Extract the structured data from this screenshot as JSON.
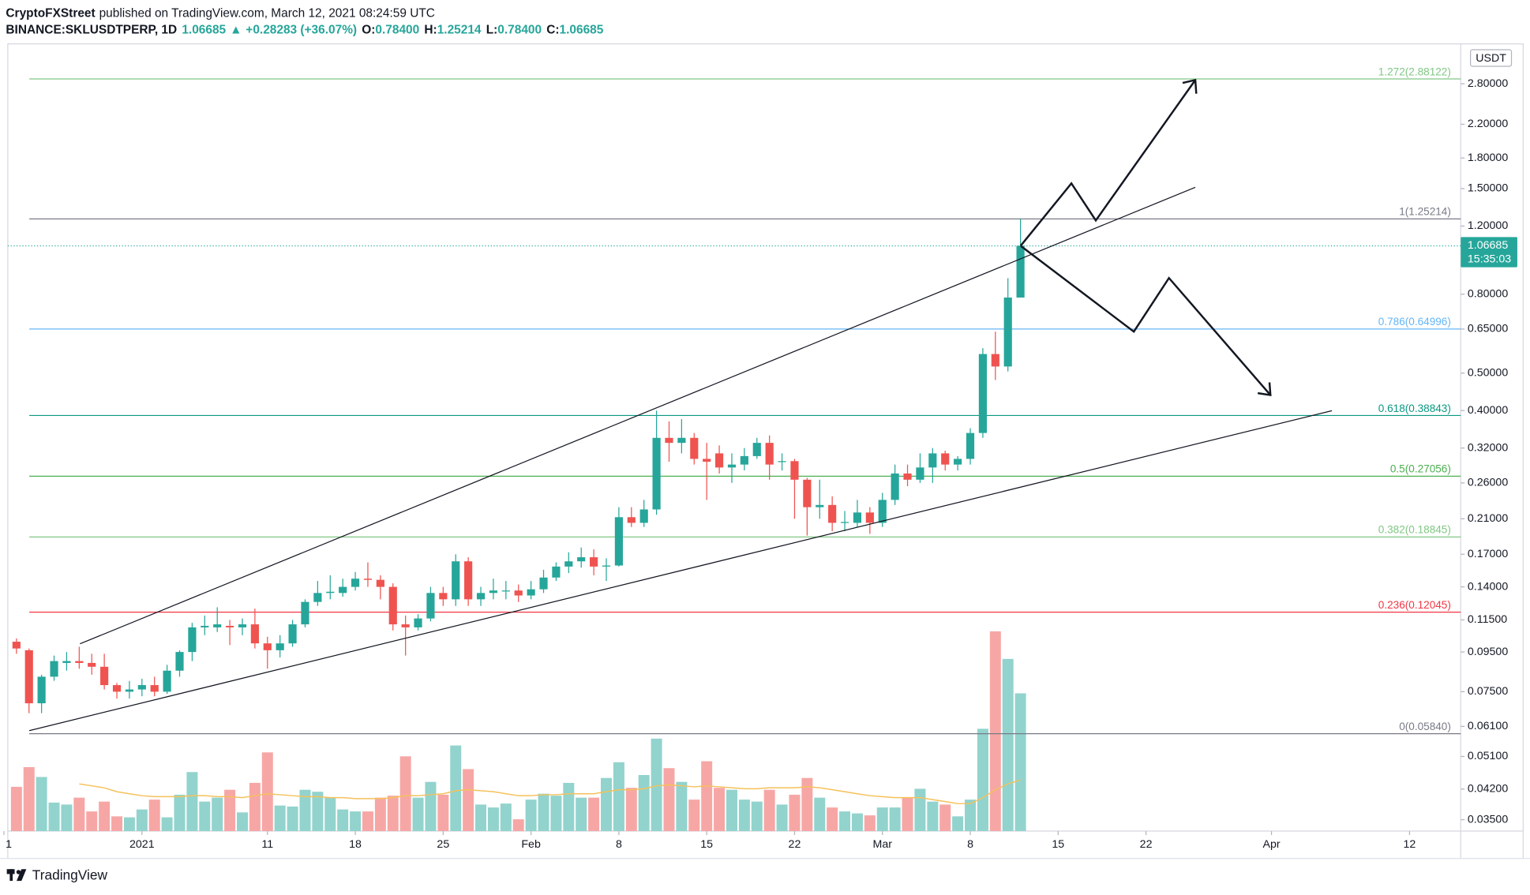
{
  "header": {
    "author": "CryptoFXStreet",
    "published": "published on TradingView.com, March 12, 2021 08:24:59 UTC",
    "symbol": "BINANCE:SKLUSDTPERP, 1D",
    "price": "1.06685",
    "arrow": "▲",
    "change": "+0.28283 (+36.07%)",
    "ohlc": [
      [
        "O:",
        "0.78400"
      ],
      [
        "H:",
        "1.25214"
      ],
      [
        "L:",
        "0.78400"
      ],
      [
        "C:",
        "1.06685"
      ]
    ]
  },
  "footer": {
    "brand": "TradingView"
  },
  "chart_data": {
    "type": "candlestick",
    "log_scale": true,
    "currency": "USDT",
    "up_color": "#26a69a",
    "down_color": "#ef5350",
    "volume_up_color": "#92d3cd",
    "volume_down_color": "#f6a7a5",
    "volume_ma_color": "#f5c15b",
    "last_price": 1.06685,
    "countdown": "15:35:03",
    "xlim": [
      "2020-12-21",
      "2021-04-16"
    ],
    "xticks": [
      {
        "value": "2020-12-21",
        "label": "1"
      },
      {
        "value": "2021-01-01",
        "label": "2021"
      },
      {
        "value": "2021-01-11",
        "label": "11"
      },
      {
        "value": "2021-01-18",
        "label": "18"
      },
      {
        "value": "2021-01-25",
        "label": "25"
      },
      {
        "value": "2021-02-01",
        "label": "Feb"
      },
      {
        "value": "2021-02-08",
        "label": "8"
      },
      {
        "value": "2021-02-15",
        "label": "15"
      },
      {
        "value": "2021-02-22",
        "label": "22"
      },
      {
        "value": "2021-03-01",
        "label": "Mar"
      },
      {
        "value": "2021-03-08",
        "label": "8"
      },
      {
        "value": "2021-03-15",
        "label": "15"
      },
      {
        "value": "2021-03-22",
        "label": "22"
      },
      {
        "value": "2021-04-01",
        "label": "Apr"
      },
      {
        "value": "2021-04-12",
        "label": "12"
      }
    ],
    "ylim": [
      0.0327,
      3.55
    ],
    "yticks": [
      {
        "value": 2.8,
        "label": "2.80000"
      },
      {
        "value": 2.2,
        "label": "2.20000"
      },
      {
        "value": 1.8,
        "label": "1.80000"
      },
      {
        "value": 1.5,
        "label": "1.50000"
      },
      {
        "value": 1.2,
        "label": "1.20000"
      },
      {
        "value": 0.8,
        "label": "0.80000"
      },
      {
        "value": 0.65,
        "label": "0.65000"
      },
      {
        "value": 0.5,
        "label": "0.50000"
      },
      {
        "value": 0.4,
        "label": "0.40000"
      },
      {
        "value": 0.32,
        "label": "0.32000"
      },
      {
        "value": 0.26,
        "label": "0.26000"
      },
      {
        "value": 0.21,
        "label": "0.21000"
      },
      {
        "value": 0.17,
        "label": "0.17000"
      },
      {
        "value": 0.14,
        "label": "0.14000"
      },
      {
        "value": 0.115,
        "label": "0.11500"
      },
      {
        "value": 0.095,
        "label": "0.09500"
      },
      {
        "value": 0.075,
        "label": "0.07500"
      },
      {
        "value": 0.061,
        "label": "0.06100"
      },
      {
        "value": 0.051,
        "label": "0.05100"
      },
      {
        "value": 0.042,
        "label": "0.04200"
      },
      {
        "value": 0.035,
        "label": "0.03500"
      }
    ],
    "fib_levels": [
      {
        "ratio": 1.272,
        "price": 2.88122,
        "label": "(2.88122)",
        "color": "#81c784"
      },
      {
        "ratio": 1,
        "price": 1.25214,
        "label": "(1.25214)",
        "color": "#787b86"
      },
      {
        "ratio": 0.786,
        "price": 0.64996,
        "label": "(0.64996)",
        "color": "#64b5f6"
      },
      {
        "ratio": 0.618,
        "price": 0.38843,
        "label": "(0.38843)",
        "color": "#089981"
      },
      {
        "ratio": 0.5,
        "price": 0.27056,
        "label": "(0.27056)",
        "color": "#4caf50"
      },
      {
        "ratio": 0.382,
        "price": 0.18845,
        "label": "(0.18845)",
        "color": "#81c784"
      },
      {
        "ratio": 0.236,
        "price": 0.12045,
        "label": "(0.12045)",
        "color": "#f23645"
      },
      {
        "ratio": 0,
        "price": 0.0584,
        "label": "(0.05840)",
        "color": "#787b86"
      }
    ],
    "x": [
      "2020-12-22",
      "2020-12-23",
      "2020-12-24",
      "2020-12-25",
      "2020-12-26",
      "2020-12-27",
      "2020-12-28",
      "2020-12-29",
      "2020-12-30",
      "2020-12-31",
      "2021-01-01",
      "2021-01-02",
      "2021-01-03",
      "2021-01-04",
      "2021-01-05",
      "2021-01-06",
      "2021-01-07",
      "2021-01-08",
      "2021-01-09",
      "2021-01-10",
      "2021-01-11",
      "2021-01-12",
      "2021-01-13",
      "2021-01-14",
      "2021-01-15",
      "2021-01-16",
      "2021-01-17",
      "2021-01-18",
      "2021-01-19",
      "2021-01-20",
      "2021-01-21",
      "2021-01-22",
      "2021-01-23",
      "2021-01-24",
      "2021-01-25",
      "2021-01-26",
      "2021-01-27",
      "2021-01-28",
      "2021-01-29",
      "2021-01-30",
      "2021-01-31",
      "2021-02-01",
      "2021-02-02",
      "2021-02-03",
      "2021-02-04",
      "2021-02-05",
      "2021-02-06",
      "2021-02-07",
      "2021-02-08",
      "2021-02-09",
      "2021-02-10",
      "2021-02-11",
      "2021-02-12",
      "2021-02-13",
      "2021-02-14",
      "2021-02-15",
      "2021-02-16",
      "2021-02-17",
      "2021-02-18",
      "2021-02-19",
      "2021-02-20",
      "2021-02-21",
      "2021-02-22",
      "2021-02-23",
      "2021-02-24",
      "2021-02-25",
      "2021-02-26",
      "2021-02-27",
      "2021-02-28",
      "2021-03-01",
      "2021-03-02",
      "2021-03-03",
      "2021-03-04",
      "2021-03-05",
      "2021-03-06",
      "2021-03-07",
      "2021-03-08",
      "2021-03-09",
      "2021-03-10",
      "2021-03-11",
      "2021-03-12"
    ],
    "open": [
      0.101,
      0.096,
      0.07,
      0.082,
      0.089,
      0.09,
      0.089,
      0.087,
      0.078,
      0.075,
      0.076,
      0.078,
      0.075,
      0.085,
      0.095,
      0.11,
      0.11,
      0.111,
      0.11,
      0.112,
      0.1,
      0.096,
      0.1,
      0.112,
      0.128,
      0.135,
      0.135,
      0.14,
      0.147,
      0.146,
      0.14,
      0.112,
      0.11,
      0.116,
      0.135,
      0.13,
      0.163,
      0.13,
      0.135,
      0.137,
      0.137,
      0.133,
      0.138,
      0.148,
      0.158,
      0.163,
      0.167,
      0.158,
      0.159,
      0.212,
      0.205,
      0.222,
      0.34,
      0.33,
      0.34,
      0.3,
      0.31,
      0.285,
      0.29,
      0.305,
      0.33,
      0.295,
      0.296,
      0.265,
      0.225,
      0.228,
      0.205,
      0.205,
      0.218,
      0.205,
      0.235,
      0.275,
      0.265,
      0.285,
      0.31,
      0.29,
      0.3,
      0.35,
      0.56,
      0.52,
      0.784
    ],
    "high": [
      0.103,
      0.097,
      0.083,
      0.093,
      0.095,
      0.098,
      0.094,
      0.094,
      0.079,
      0.08,
      0.081,
      0.082,
      0.088,
      0.096,
      0.113,
      0.118,
      0.124,
      0.115,
      0.116,
      0.123,
      0.104,
      0.105,
      0.115,
      0.13,
      0.145,
      0.15,
      0.147,
      0.153,
      0.162,
      0.15,
      0.143,
      0.118,
      0.119,
      0.14,
      0.14,
      0.17,
      0.167,
      0.14,
      0.147,
      0.145,
      0.142,
      0.145,
      0.155,
      0.162,
      0.172,
      0.177,
      0.175,
      0.166,
      0.225,
      0.225,
      0.235,
      0.4,
      0.375,
      0.38,
      0.35,
      0.33,
      0.325,
      0.31,
      0.32,
      0.34,
      0.345,
      0.31,
      0.3,
      0.268,
      0.265,
      0.24,
      0.22,
      0.235,
      0.225,
      0.245,
      0.29,
      0.29,
      0.31,
      0.32,
      0.315,
      0.305,
      0.36,
      0.58,
      0.64,
      0.88,
      1.25214
    ],
    "low": [
      0.094,
      0.066,
      0.066,
      0.08,
      0.085,
      0.086,
      0.083,
      0.076,
      0.072,
      0.072,
      0.073,
      0.073,
      0.074,
      0.082,
      0.09,
      0.105,
      0.107,
      0.099,
      0.105,
      0.097,
      0.086,
      0.092,
      0.098,
      0.11,
      0.125,
      0.13,
      0.132,
      0.137,
      0.14,
      0.13,
      0.108,
      0.093,
      0.108,
      0.114,
      0.125,
      0.125,
      0.125,
      0.125,
      0.13,
      0.13,
      0.128,
      0.13,
      0.135,
      0.145,
      0.152,
      0.157,
      0.15,
      0.145,
      0.158,
      0.2,
      0.2,
      0.215,
      0.295,
      0.31,
      0.29,
      0.235,
      0.275,
      0.26,
      0.28,
      0.3,
      0.265,
      0.28,
      0.21,
      0.19,
      0.21,
      0.195,
      0.195,
      0.2,
      0.192,
      0.2,
      0.228,
      0.255,
      0.26,
      0.26,
      0.28,
      0.28,
      0.29,
      0.34,
      0.48,
      0.505,
      0.784
    ],
    "close": [
      0.097,
      0.07,
      0.082,
      0.09,
      0.09,
      0.089,
      0.087,
      0.078,
      0.075,
      0.076,
      0.078,
      0.075,
      0.085,
      0.095,
      0.11,
      0.111,
      0.112,
      0.11,
      0.112,
      0.1,
      0.096,
      0.1,
      0.112,
      0.128,
      0.135,
      0.136,
      0.14,
      0.147,
      0.146,
      0.14,
      0.112,
      0.11,
      0.116,
      0.135,
      0.13,
      0.163,
      0.13,
      0.135,
      0.137,
      0.137,
      0.133,
      0.138,
      0.148,
      0.158,
      0.163,
      0.167,
      0.158,
      0.159,
      0.212,
      0.205,
      0.222,
      0.34,
      0.33,
      0.34,
      0.3,
      0.295,
      0.285,
      0.29,
      0.305,
      0.33,
      0.29,
      0.296,
      0.265,
      0.225,
      0.228,
      0.205,
      0.206,
      0.218,
      0.205,
      0.235,
      0.275,
      0.265,
      0.285,
      0.31,
      0.29,
      0.3,
      0.35,
      0.56,
      0.52,
      0.784,
      1.06685
    ],
    "volume_ylim": [
      0,
      800
    ],
    "volume": [
      45,
      65,
      55,
      29,
      27,
      34,
      20,
      30,
      15,
      14,
      22,
      32,
      14,
      37,
      60,
      30,
      34,
      42,
      19,
      49,
      80,
      26,
      25,
      42,
      40,
      34,
      22,
      20,
      20,
      34,
      36,
      76,
      34,
      50,
      37,
      87,
      63,
      27,
      24,
      28,
      12,
      32,
      38,
      36,
      49,
      34,
      34,
      54,
      70,
      44,
      57,
      94,
      64,
      50,
      32,
      71,
      44,
      42,
      32,
      30,
      42,
      27,
      37,
      54,
      34,
      24,
      20,
      18,
      16,
      24,
      24,
      34,
      43,
      30,
      27,
      15,
      32,
      104,
      203,
      175,
      140
    ],
    "volume_ma": [
      null,
      null,
      null,
      null,
      null,
      48,
      46,
      44,
      40,
      38,
      36,
      35,
      35,
      35,
      36,
      36,
      35,
      35,
      34,
      36,
      38,
      37,
      36,
      35,
      35,
      34,
      34,
      33,
      33,
      33,
      34,
      36,
      36,
      37,
      38,
      41,
      42,
      41,
      40,
      38,
      36,
      36,
      37,
      37,
      38,
      38,
      38,
      40,
      42,
      42,
      43,
      46,
      47,
      46,
      45,
      46,
      45,
      44,
      43,
      43,
      44,
      44,
      44,
      45,
      44,
      42,
      40,
      38,
      36,
      35,
      34,
      34,
      34,
      32,
      30,
      28,
      28,
      34,
      42,
      48,
      52
    ]
  }
}
